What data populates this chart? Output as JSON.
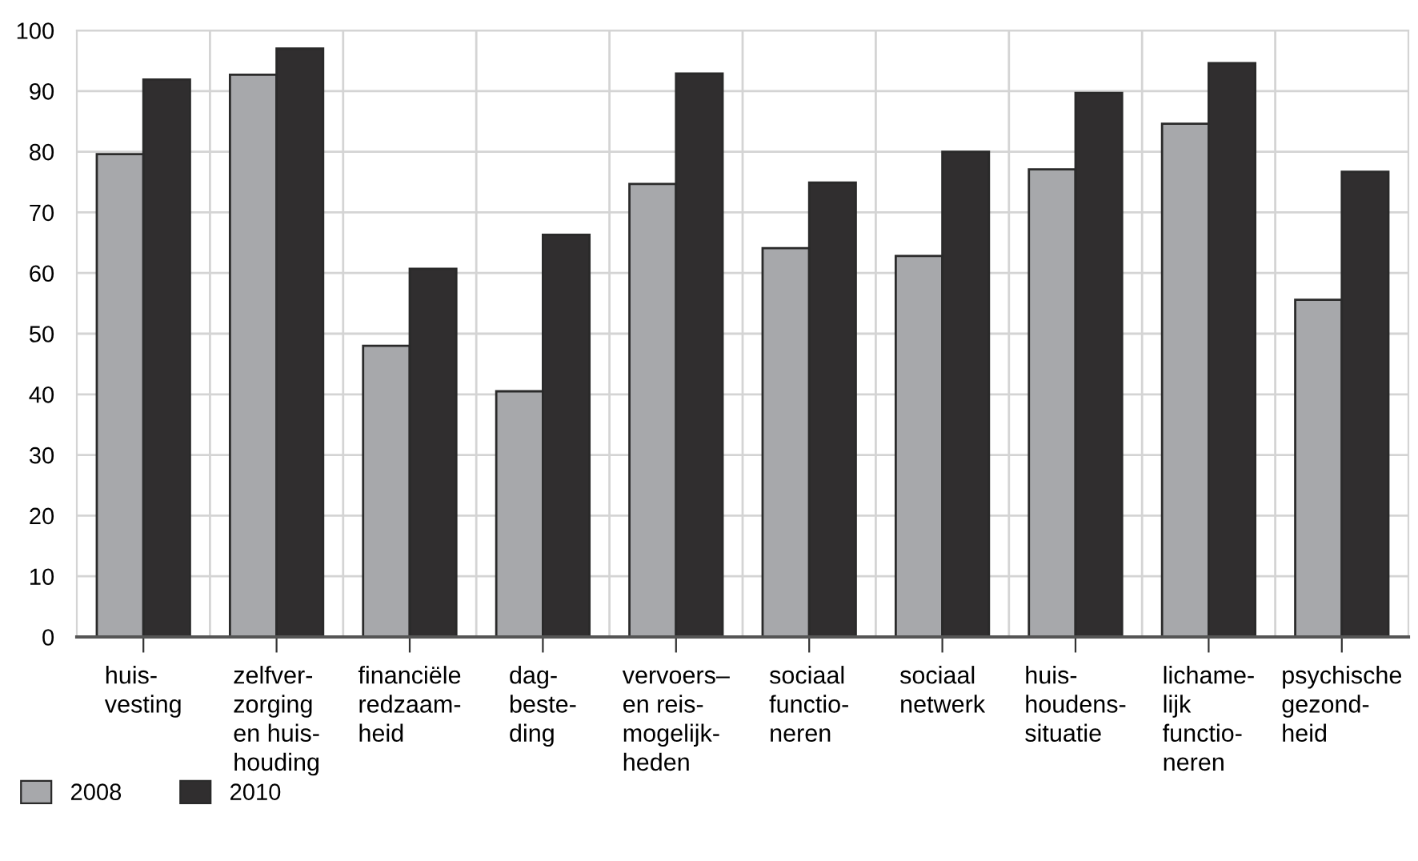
{
  "chart_data": {
    "type": "bar",
    "categories": [
      "huis-\nvesting",
      "zelfver-\nzorging\nen huis-\nhouding",
      "financiële\nredzaam-\nheid",
      "dag-\nbeste-\nding",
      "vervoers–\nen reis-\nmogelijk-\nheden",
      "sociaal\nfunctio-\nneren",
      "sociaal\nnetwerk",
      "huis-\nhoudens-\nsituatie",
      "lichame-\nlijk\nfunctio-\nneren",
      "psychische\ngezond-\nheid"
    ],
    "series": [
      {
        "name": "2008",
        "color": "#a7a8ab",
        "values": [
          79.6,
          92.7,
          48.0,
          40.5,
          74.7,
          64.1,
          62.8,
          77.1,
          84.6,
          55.6
        ]
      },
      {
        "name": "2010",
        "color": "#302e2f",
        "values": [
          91.9,
          97.0,
          60.7,
          66.3,
          92.9,
          74.9,
          80.0,
          89.7,
          94.6,
          76.7
        ]
      }
    ],
    "ylim": [
      0,
      100
    ],
    "yticks": [
      0,
      10,
      20,
      30,
      40,
      50,
      60,
      70,
      80,
      90,
      100
    ],
    "grid": true,
    "legend": "bottom left"
  }
}
